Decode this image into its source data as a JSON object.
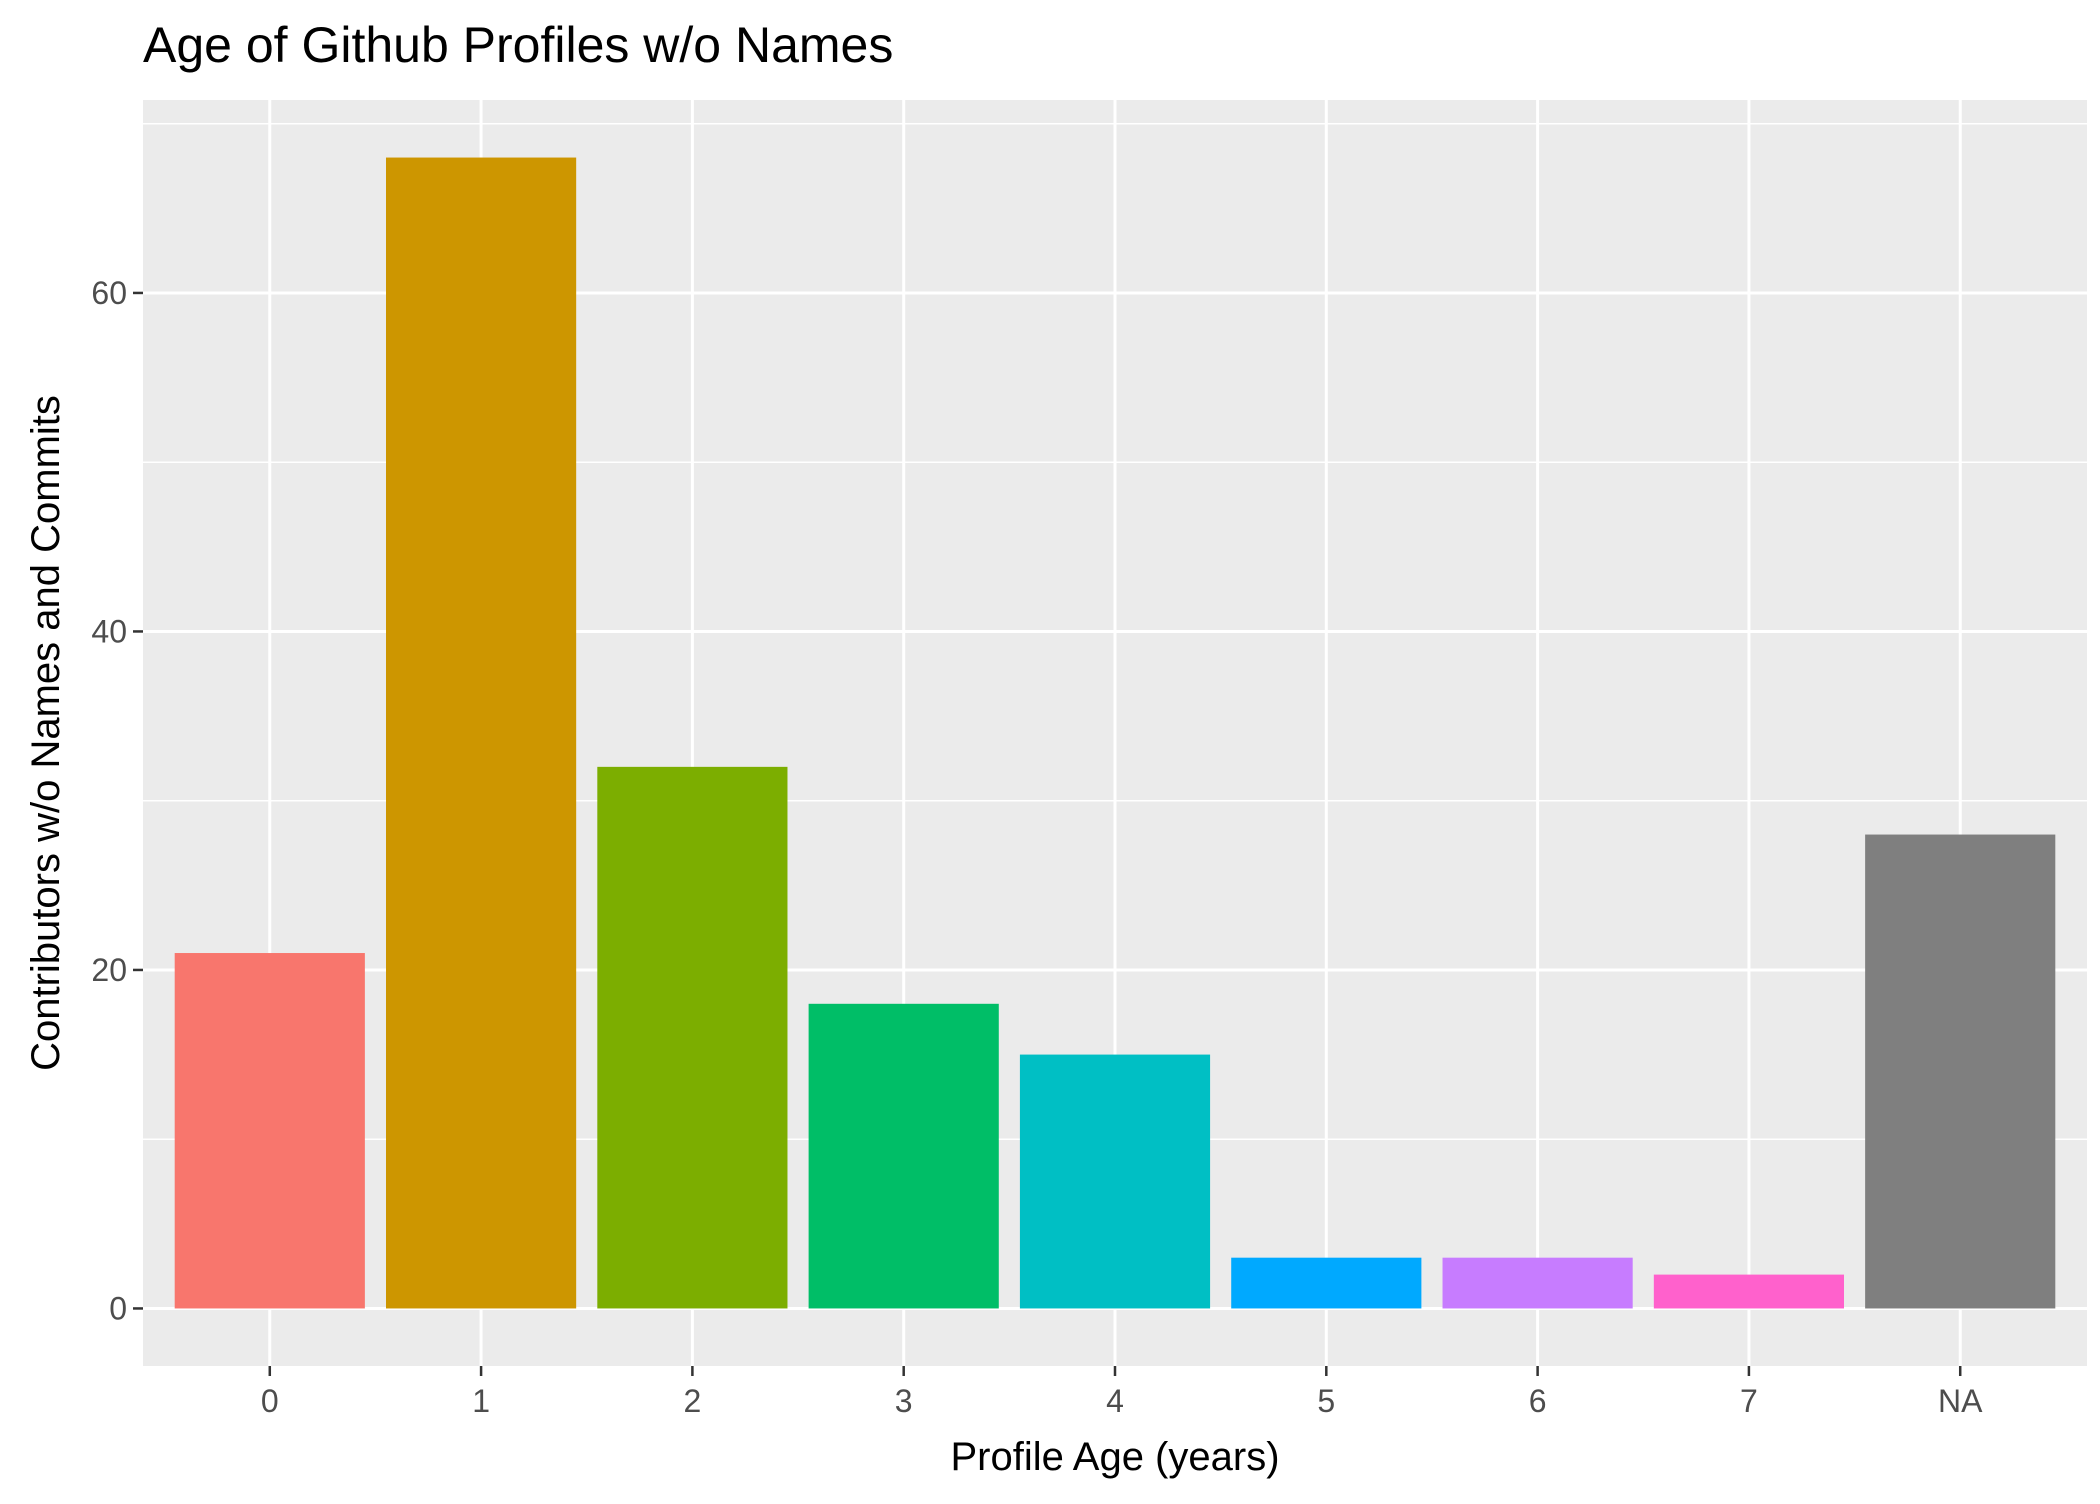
{
  "chart_data": {
    "type": "bar",
    "title": "Age of Github Profiles w/o Names",
    "xlabel": "Profile Age (years)",
    "ylabel": "Contributors w/o Names and Commits",
    "categories": [
      "0",
      "1",
      "2",
      "3",
      "4",
      "5",
      "6",
      "7",
      "NA"
    ],
    "values": [
      21,
      68,
      32,
      18,
      15,
      3,
      3,
      2,
      28
    ],
    "colors": [
      "#F8766D",
      "#CD9600",
      "#7CAE00",
      "#00BE67",
      "#00BFC4",
      "#00A9FF",
      "#C77CFF",
      "#FF61CC",
      "#7F7F7F"
    ],
    "ylim": [
      -3.4,
      71.4
    ],
    "yticks": [
      0,
      20,
      40,
      60
    ],
    "ytick_labels": [
      "0",
      "20",
      "40",
      "60"
    ],
    "grid": true,
    "legend": "none",
    "panel_background": "#EBEBEB",
    "grid_color": "#FFFFFF"
  }
}
